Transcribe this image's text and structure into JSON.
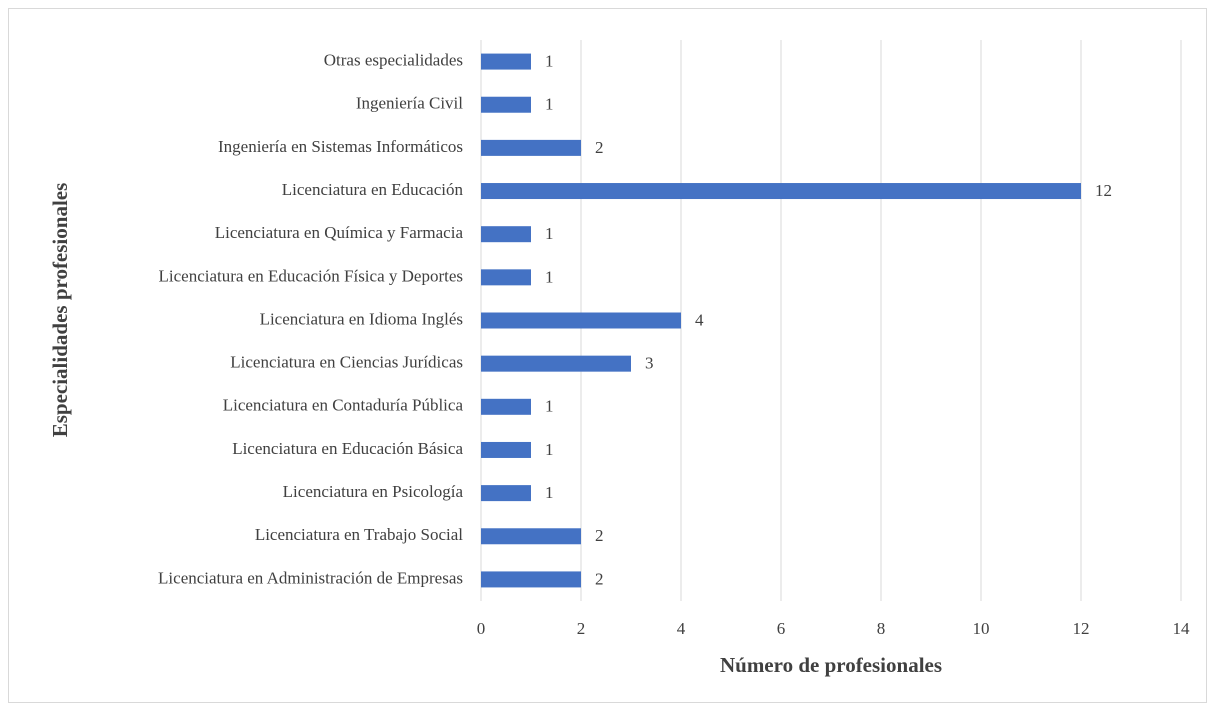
{
  "chart_data": {
    "type": "bar",
    "orientation": "horizontal",
    "xlabel": "Número de profesionales",
    "ylabel": "Especialidades profesionales",
    "categories": [
      "Otras especialidades",
      "Ingeniería Civil",
      "Ingeniería en Sistemas Informáticos",
      "Licenciatura en Educación",
      "Licenciatura en Química y Farmacia",
      "Licenciatura en Educación Física y Deportes",
      "Licenciatura en Idioma Inglés",
      "Licenciatura en Ciencias Jurídicas",
      "Licenciatura en Contaduría Pública",
      "Licenciatura en Educación Básica",
      "Licenciatura en Psicología",
      "Licenciatura en Trabajo Social",
      "Licenciatura en Administración de Empresas"
    ],
    "values": [
      1,
      1,
      2,
      12,
      1,
      1,
      4,
      3,
      1,
      1,
      1,
      2,
      2
    ],
    "color": "#4472c4",
    "xlim": [
      0,
      14
    ],
    "xticks": [
      0,
      2,
      4,
      6,
      8,
      10,
      12,
      14
    ],
    "grid": true
  }
}
